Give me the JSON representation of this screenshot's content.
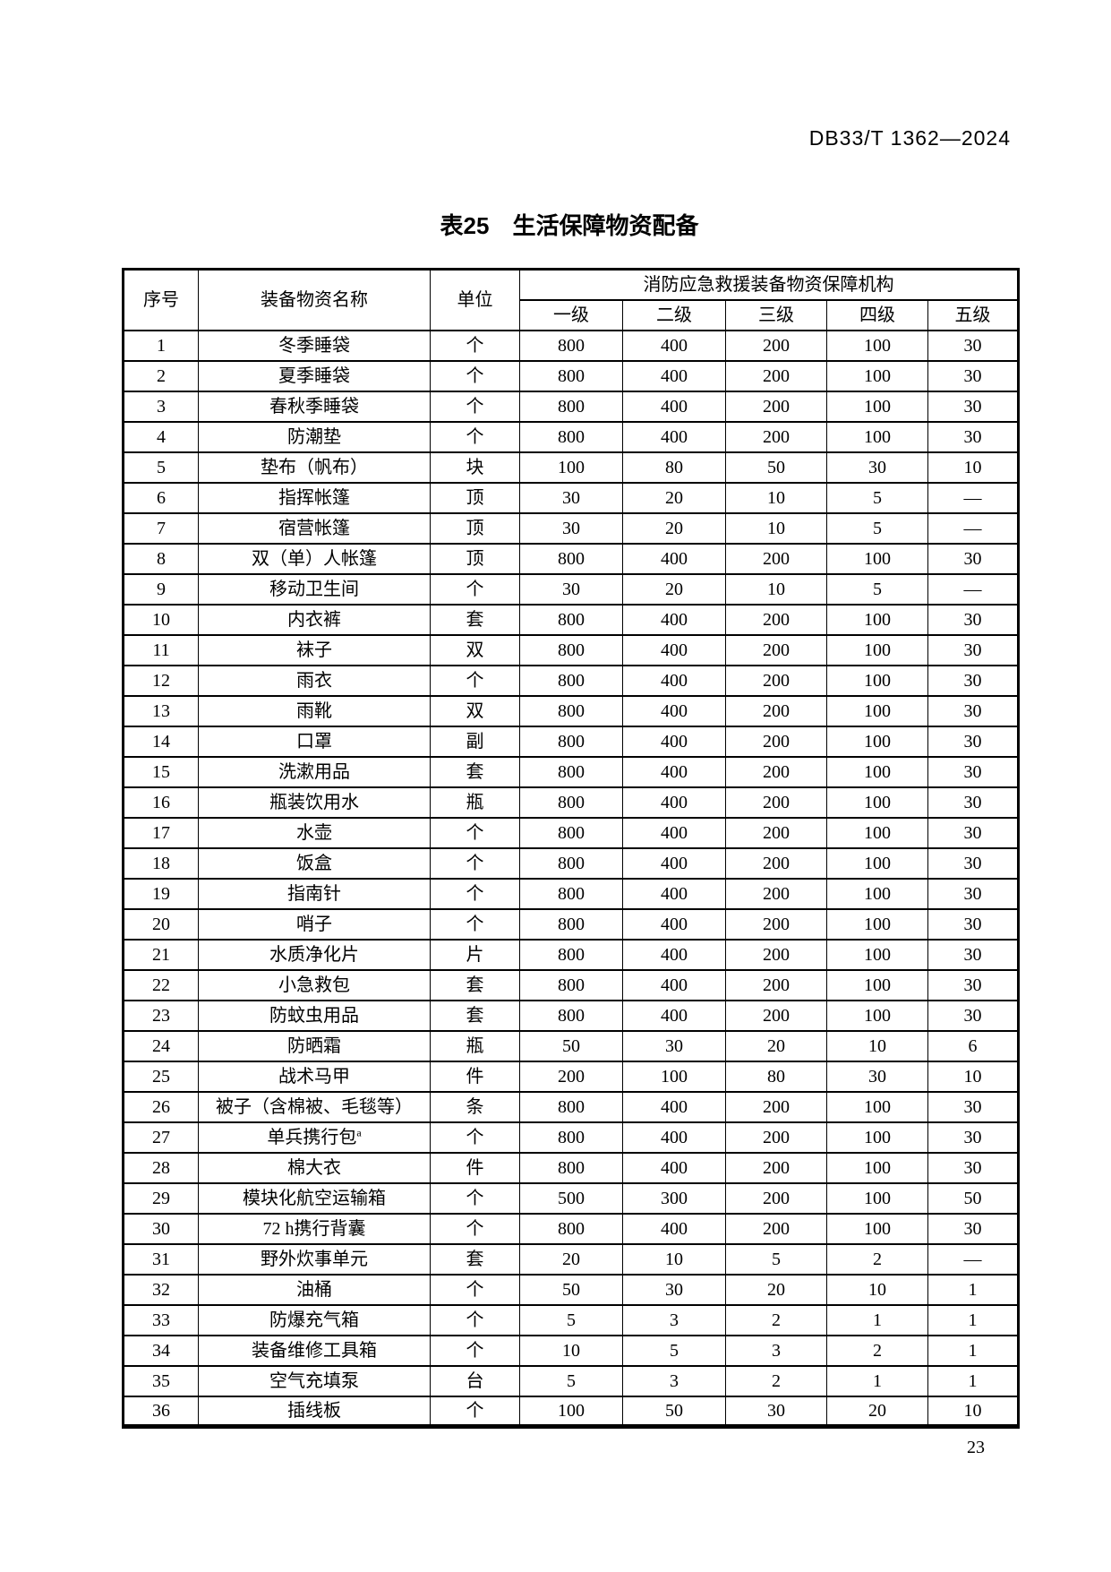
{
  "document": {
    "standard_code": "DB33/T 1362—2024",
    "page_number": "23"
  },
  "table": {
    "title": "表25　生活保障物资配备",
    "headers": {
      "seq": "序号",
      "name": "装备物资名称",
      "unit": "单位",
      "group": "消防应急救援装备物资保障机构",
      "levels": [
        "一级",
        "二级",
        "三级",
        "四级",
        "五级"
      ]
    },
    "rows": [
      {
        "seq": "1",
        "name": "冬季睡袋",
        "unit": "个",
        "values": [
          "800",
          "400",
          "200",
          "100",
          "30"
        ]
      },
      {
        "seq": "2",
        "name": "夏季睡袋",
        "unit": "个",
        "values": [
          "800",
          "400",
          "200",
          "100",
          "30"
        ]
      },
      {
        "seq": "3",
        "name": "春秋季睡袋",
        "unit": "个",
        "values": [
          "800",
          "400",
          "200",
          "100",
          "30"
        ]
      },
      {
        "seq": "4",
        "name": "防潮垫",
        "unit": "个",
        "values": [
          "800",
          "400",
          "200",
          "100",
          "30"
        ]
      },
      {
        "seq": "5",
        "name": "垫布（帆布）",
        "unit": "块",
        "values": [
          "100",
          "80",
          "50",
          "30",
          "10"
        ]
      },
      {
        "seq": "6",
        "name": "指挥帐篷",
        "unit": "顶",
        "values": [
          "30",
          "20",
          "10",
          "5",
          "—"
        ]
      },
      {
        "seq": "7",
        "name": "宿营帐篷",
        "unit": "顶",
        "values": [
          "30",
          "20",
          "10",
          "5",
          "—"
        ]
      },
      {
        "seq": "8",
        "name": "双（单）人帐篷",
        "unit": "顶",
        "values": [
          "800",
          "400",
          "200",
          "100",
          "30"
        ]
      },
      {
        "seq": "9",
        "name": "移动卫生间",
        "unit": "个",
        "values": [
          "30",
          "20",
          "10",
          "5",
          "—"
        ]
      },
      {
        "seq": "10",
        "name": "内衣裤",
        "unit": "套",
        "values": [
          "800",
          "400",
          "200",
          "100",
          "30"
        ]
      },
      {
        "seq": "11",
        "name": "袜子",
        "unit": "双",
        "values": [
          "800",
          "400",
          "200",
          "100",
          "30"
        ]
      },
      {
        "seq": "12",
        "name": "雨衣",
        "unit": "个",
        "values": [
          "800",
          "400",
          "200",
          "100",
          "30"
        ]
      },
      {
        "seq": "13",
        "name": "雨靴",
        "unit": "双",
        "values": [
          "800",
          "400",
          "200",
          "100",
          "30"
        ]
      },
      {
        "seq": "14",
        "name": "口罩",
        "unit": "副",
        "values": [
          "800",
          "400",
          "200",
          "100",
          "30"
        ]
      },
      {
        "seq": "15",
        "name": "洗漱用品",
        "unit": "套",
        "values": [
          "800",
          "400",
          "200",
          "100",
          "30"
        ]
      },
      {
        "seq": "16",
        "name": "瓶装饮用水",
        "unit": "瓶",
        "values": [
          "800",
          "400",
          "200",
          "100",
          "30"
        ]
      },
      {
        "seq": "17",
        "name": "水壶",
        "unit": "个",
        "values": [
          "800",
          "400",
          "200",
          "100",
          "30"
        ]
      },
      {
        "seq": "18",
        "name": "饭盒",
        "unit": "个",
        "values": [
          "800",
          "400",
          "200",
          "100",
          "30"
        ]
      },
      {
        "seq": "19",
        "name": "指南针",
        "unit": "个",
        "values": [
          "800",
          "400",
          "200",
          "100",
          "30"
        ]
      },
      {
        "seq": "20",
        "name": "哨子",
        "unit": "个",
        "values": [
          "800",
          "400",
          "200",
          "100",
          "30"
        ]
      },
      {
        "seq": "21",
        "name": "水质净化片",
        "unit": "片",
        "values": [
          "800",
          "400",
          "200",
          "100",
          "30"
        ]
      },
      {
        "seq": "22",
        "name": "小急救包",
        "unit": "套",
        "values": [
          "800",
          "400",
          "200",
          "100",
          "30"
        ]
      },
      {
        "seq": "23",
        "name": "防蚊虫用品",
        "unit": "套",
        "values": [
          "800",
          "400",
          "200",
          "100",
          "30"
        ]
      },
      {
        "seq": "24",
        "name": "防晒霜",
        "unit": "瓶",
        "values": [
          "50",
          "30",
          "20",
          "10",
          "6"
        ]
      },
      {
        "seq": "25",
        "name": "战术马甲",
        "unit": "件",
        "values": [
          "200",
          "100",
          "80",
          "30",
          "10"
        ]
      },
      {
        "seq": "26",
        "name": "被子（含棉被、毛毯等）",
        "unit": "条",
        "values": [
          "800",
          "400",
          "200",
          "100",
          "30"
        ]
      },
      {
        "seq": "27",
        "name": "单兵携行包",
        "footnote": "a",
        "unit": "个",
        "values": [
          "800",
          "400",
          "200",
          "100",
          "30"
        ]
      },
      {
        "seq": "28",
        "name": "棉大衣",
        "unit": "件",
        "values": [
          "800",
          "400",
          "200",
          "100",
          "30"
        ]
      },
      {
        "seq": "29",
        "name": "模块化航空运输箱",
        "unit": "个",
        "values": [
          "500",
          "300",
          "200",
          "100",
          "50"
        ]
      },
      {
        "seq": "30",
        "name": "72 h携行背囊",
        "unit": "个",
        "values": [
          "800",
          "400",
          "200",
          "100",
          "30"
        ]
      },
      {
        "seq": "31",
        "name": "野外炊事单元",
        "unit": "套",
        "values": [
          "20",
          "10",
          "5",
          "2",
          "—"
        ]
      },
      {
        "seq": "32",
        "name": "油桶",
        "unit": "个",
        "values": [
          "50",
          "30",
          "20",
          "10",
          "1"
        ]
      },
      {
        "seq": "33",
        "name": "防爆充气箱",
        "unit": "个",
        "values": [
          "5",
          "3",
          "2",
          "1",
          "1"
        ]
      },
      {
        "seq": "34",
        "name": "装备维修工具箱",
        "unit": "个",
        "values": [
          "10",
          "5",
          "3",
          "2",
          "1"
        ]
      },
      {
        "seq": "35",
        "name": "空气充填泵",
        "unit": "台",
        "values": [
          "5",
          "3",
          "2",
          "1",
          "1"
        ]
      },
      {
        "seq": "36",
        "name": "插线板",
        "unit": "个",
        "values": [
          "100",
          "50",
          "30",
          "20",
          "10"
        ]
      }
    ]
  }
}
